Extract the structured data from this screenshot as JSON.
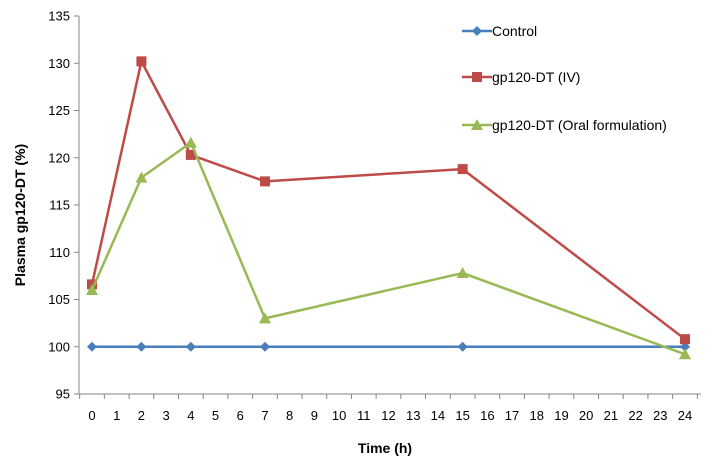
{
  "chart_data": {
    "type": "line",
    "xlabel": "Time (h)",
    "ylabel": "Plasma  gp120-DT (%)",
    "ylim": [
      95,
      135
    ],
    "yticks": [
      95,
      100,
      105,
      110,
      115,
      120,
      125,
      130,
      135
    ],
    "xticks": [
      0,
      1,
      2,
      3,
      4,
      5,
      6,
      7,
      8,
      9,
      10,
      11,
      12,
      13,
      14,
      15,
      16,
      17,
      18,
      19,
      20,
      21,
      22,
      23,
      24
    ],
    "grid": false,
    "legend_position": "top-right",
    "series": [
      {
        "name": "Control",
        "color": "#4a7ebb",
        "marker": "diamond",
        "x": [
          0,
          2,
          4,
          7,
          15,
          24
        ],
        "y": [
          100,
          100,
          100,
          100,
          100,
          100
        ]
      },
      {
        "name": "gp120-DT (IV)",
        "color": "#be4b48",
        "marker": "square",
        "x": [
          0,
          2,
          4,
          7,
          15,
          24
        ],
        "y": [
          106.6,
          130.2,
          120.3,
          117.5,
          118.8,
          100.8
        ]
      },
      {
        "name": "gp120-DT (Oral formulation)",
        "color": "#98b954",
        "marker": "triangle",
        "x": [
          0,
          2,
          4,
          7,
          15,
          24
        ],
        "y": [
          106.0,
          117.9,
          121.6,
          103.0,
          107.8,
          99.2
        ]
      }
    ]
  }
}
